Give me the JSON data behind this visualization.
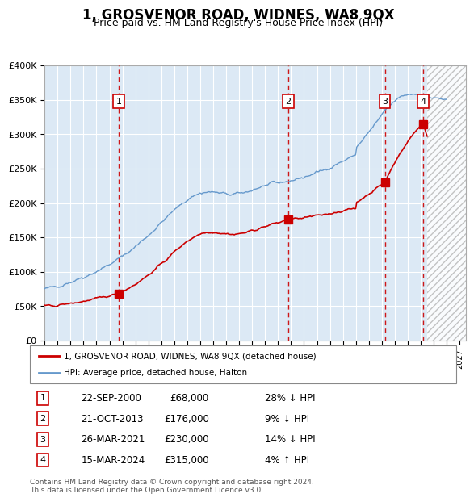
{
  "title": "1, GROSVENOR ROAD, WIDNES, WA8 9QX",
  "subtitle": "Price paid vs. HM Land Registry's House Price Index (HPI)",
  "title_fontsize": 13,
  "subtitle_fontsize": 10,
  "xlabel": "",
  "ylabel": "",
  "ylim": [
    0,
    400000
  ],
  "yticks": [
    0,
    50000,
    100000,
    150000,
    200000,
    250000,
    300000,
    350000,
    400000
  ],
  "ytick_labels": [
    "£0",
    "£50K",
    "£100K",
    "£150K",
    "£200K",
    "£250K",
    "£300K",
    "£350K",
    "£400K"
  ],
  "xlim_start": 1995.0,
  "xlim_end": 2027.5,
  "background_color": "#dce9f5",
  "plot_background": "#dce9f5",
  "grid_color": "#ffffff",
  "red_line_color": "#cc0000",
  "blue_line_color": "#6699cc",
  "dashed_vline_color": "#cc0000",
  "sale_dates": [
    2000.72,
    2013.8,
    2021.23,
    2024.2
  ],
  "sale_prices": [
    68000,
    176000,
    230000,
    315000
  ],
  "sale_labels": [
    "1",
    "2",
    "3",
    "4"
  ],
  "legend_red_label": "1, GROSVENOR ROAD, WIDNES, WA8 9QX (detached house)",
  "legend_blue_label": "HPI: Average price, detached house, Halton",
  "table_rows": [
    [
      "1",
      "22-SEP-2000",
      "£68,000",
      "28% ↓ HPI"
    ],
    [
      "2",
      "21-OCT-2013",
      "£176,000",
      "9% ↓ HPI"
    ],
    [
      "3",
      "26-MAR-2021",
      "£230,000",
      "14% ↓ HPI"
    ],
    [
      "4",
      "15-MAR-2024",
      "£315,000",
      "4% ↑ HPI"
    ]
  ],
  "footnote": "Contains HM Land Registry data © Crown copyright and database right 2024.\nThis data is licensed under the Open Government Licence v3.0.",
  "hatch_color": "#bbbbbb",
  "future_start": 2024.5
}
